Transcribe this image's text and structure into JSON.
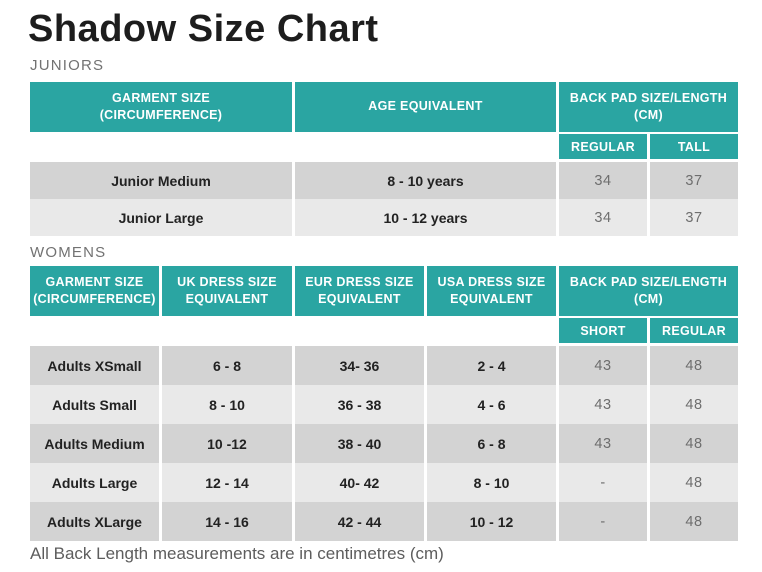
{
  "page": {
    "title": "Shadow Size Chart",
    "footnote": "All Back Length measurements are in centimetres (cm)"
  },
  "colors": {
    "teal": "#2aa5a2",
    "row_dark": "#d3d3d3",
    "row_light": "#e9e9e9"
  },
  "juniors": {
    "label": "JUNIORS",
    "headers": {
      "garment": "GARMENT SIZE\n(CIRCUMFERENCE)",
      "age": "AGE EQUIVALENT",
      "backpad": "BACK PAD SIZE/LENGTH\n(CM)",
      "sub_left": "REGULAR",
      "sub_right": "TALL"
    },
    "rows": [
      {
        "cells": [
          "Junior Medium",
          "8 - 10 years",
          "34",
          "37"
        ]
      },
      {
        "cells": [
          "Junior Large",
          "10 - 12 years",
          "34",
          "37"
        ]
      }
    ]
  },
  "womens": {
    "label": "WOMENS",
    "headers": {
      "garment": "GARMENT SIZE\n(CIRCUMFERENCE)",
      "uk": "UK DRESS SIZE\nEQUIVALENT",
      "eur": "EUR DRESS SIZE\nEQUIVALENT",
      "usa": "USA DRESS SIZE\nEQUIVALENT",
      "backpad": "BACK PAD SIZE/LENGTH\n(CM)",
      "sub_left": "SHORT",
      "sub_right": "REGULAR"
    },
    "rows": [
      {
        "cells": [
          "Adults XSmall",
          "6 - 8",
          "34- 36",
          "2 - 4",
          "43",
          "48"
        ]
      },
      {
        "cells": [
          "Adults Small",
          "8 - 10",
          "36 - 38",
          "4 - 6",
          "43",
          "48"
        ]
      },
      {
        "cells": [
          "Adults Medium",
          "10 -12",
          "38 - 40",
          "6 - 8",
          "43",
          "48"
        ]
      },
      {
        "cells": [
          "Adults Large",
          "12 - 14",
          "40- 42",
          "8 - 10",
          "-",
          "48"
        ]
      },
      {
        "cells": [
          "Adults XLarge",
          "14 - 16",
          "42 - 44",
          "10 - 12",
          "-",
          "48"
        ]
      }
    ]
  }
}
